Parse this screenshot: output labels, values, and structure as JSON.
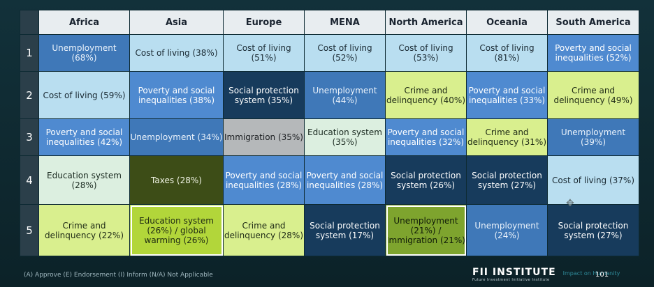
{
  "table": {
    "headers": [
      "Africa",
      "Asia",
      "Europe",
      "MENA",
      "North America",
      "Oceania",
      "South America"
    ],
    "rows": [
      {
        "num": "1",
        "cells": [
          "Unemployment (68%)",
          "Cost of living (38%)",
          "Cost of living (51%)",
          "Cost of living (52%)",
          "Cost of living (53%)",
          "Cost of living (81%)",
          "Poverty and social inequalities (52%)"
        ]
      },
      {
        "num": "2",
        "cells": [
          "Cost of living (59%)",
          "Poverty and social inequalities (38%)",
          "Social protection system (35%)",
          "Unemployment (44%)",
          "Crime and delinquency (40%)",
          "Poverty and social inequalities (33%)",
          "Crime and delinquency (49%)"
        ]
      },
      {
        "num": "3",
        "cells": [
          "Poverty and social inequalities (42%)",
          "Unemployment (34%)",
          "Immigration (35%)",
          "Education system (35%)",
          "Poverty and social inequalities (32%)",
          "Crime and delinquency (31%)",
          "Unemployment (39%)"
        ]
      },
      {
        "num": "4",
        "cells": [
          "Education system (28%)",
          "Taxes (28%)",
          "Poverty and social inequalities (28%)",
          "Poverty and social inequalities (28%)",
          "Social protection system (26%)",
          "Social protection system (27%)",
          "Cost of living (37%)"
        ]
      },
      {
        "num": "5",
        "cells": [
          "Crime and delinquency (22%)",
          "Education system (26%) / global warming (26%)",
          "Crime and delinquency (28%)",
          "Social protection system (17%)",
          "Unemployment (21%) / Immigration (21%)",
          "Unemployment (24%)",
          "Social protection system (27%)"
        ]
      }
    ]
  },
  "footer": {
    "legend": "(A) Approve (E) Endorsement (I) Inform (N/A) Not Applicable",
    "brand": "FII INSTITUTE",
    "brand_sub": "Future Investment Initiative Institute",
    "tagline": "Impact on Humanity",
    "page": "101"
  },
  "colors": {
    "background": "#0f2a30",
    "light_blue": "#b9def0",
    "mid_blue": "#4f8ad0",
    "navy": "#173b5c",
    "lime": "#d9ef8e",
    "olive": "#3d4d17",
    "grey": "#b5b8ba"
  }
}
